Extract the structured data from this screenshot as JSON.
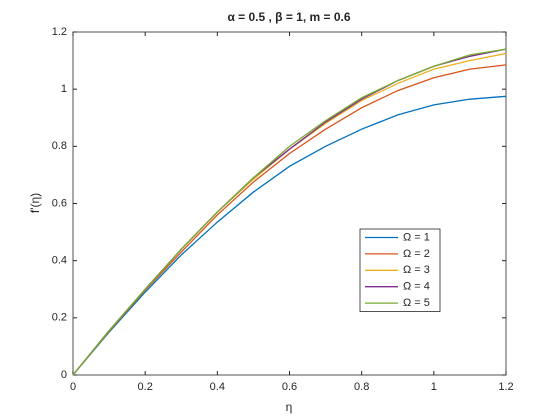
{
  "chart_data": {
    "type": "line",
    "title": "α = 0.5 , β = 1, m = 0.6",
    "x_label": "η",
    "y_label": "f'(η)",
    "x": [
      0,
      0.1,
      0.2,
      0.3,
      0.4,
      0.5,
      0.6,
      0.7,
      0.8,
      0.9,
      1.0,
      1.1,
      1.2
    ],
    "series": [
      {
        "name": "Ω = 1",
        "color": "#0072BD",
        "values": [
          0,
          0.15,
          0.29,
          0.42,
          0.535,
          0.64,
          0.73,
          0.8,
          0.86,
          0.91,
          0.945,
          0.965,
          0.975
        ]
      },
      {
        "name": "Ω = 2",
        "color": "#D95319",
        "values": [
          0,
          0.153,
          0.297,
          0.43,
          0.56,
          0.675,
          0.775,
          0.86,
          0.935,
          0.995,
          1.04,
          1.07,
          1.085
        ]
      },
      {
        "name": "Ω = 3",
        "color": "#EDB120",
        "values": [
          0,
          0.155,
          0.3,
          0.44,
          0.57,
          0.685,
          0.79,
          0.88,
          0.96,
          1.02,
          1.07,
          1.1,
          1.125
        ]
      },
      {
        "name": "Ω = 4",
        "color": "#7E2F8E",
        "values": [
          0,
          0.155,
          0.3,
          0.44,
          0.57,
          0.69,
          0.79,
          0.885,
          0.965,
          1.03,
          1.08,
          1.115,
          1.14
        ]
      },
      {
        "name": "Ω = 5",
        "color": "#77AC30",
        "values": [
          0,
          0.155,
          0.3,
          0.44,
          0.57,
          0.69,
          0.8,
          0.89,
          0.97,
          1.03,
          1.08,
          1.12,
          1.14
        ]
      }
    ],
    "xlim": [
      0,
      1.2
    ],
    "xticks": [
      0,
      0.2,
      0.4,
      0.6,
      0.8,
      1,
      1.2
    ],
    "ylim": [
      0,
      1.2
    ],
    "yticks": [
      0,
      0.2,
      0.4,
      0.6,
      0.8,
      1,
      1.2
    ],
    "grid": false,
    "legend_position": "inside"
  }
}
